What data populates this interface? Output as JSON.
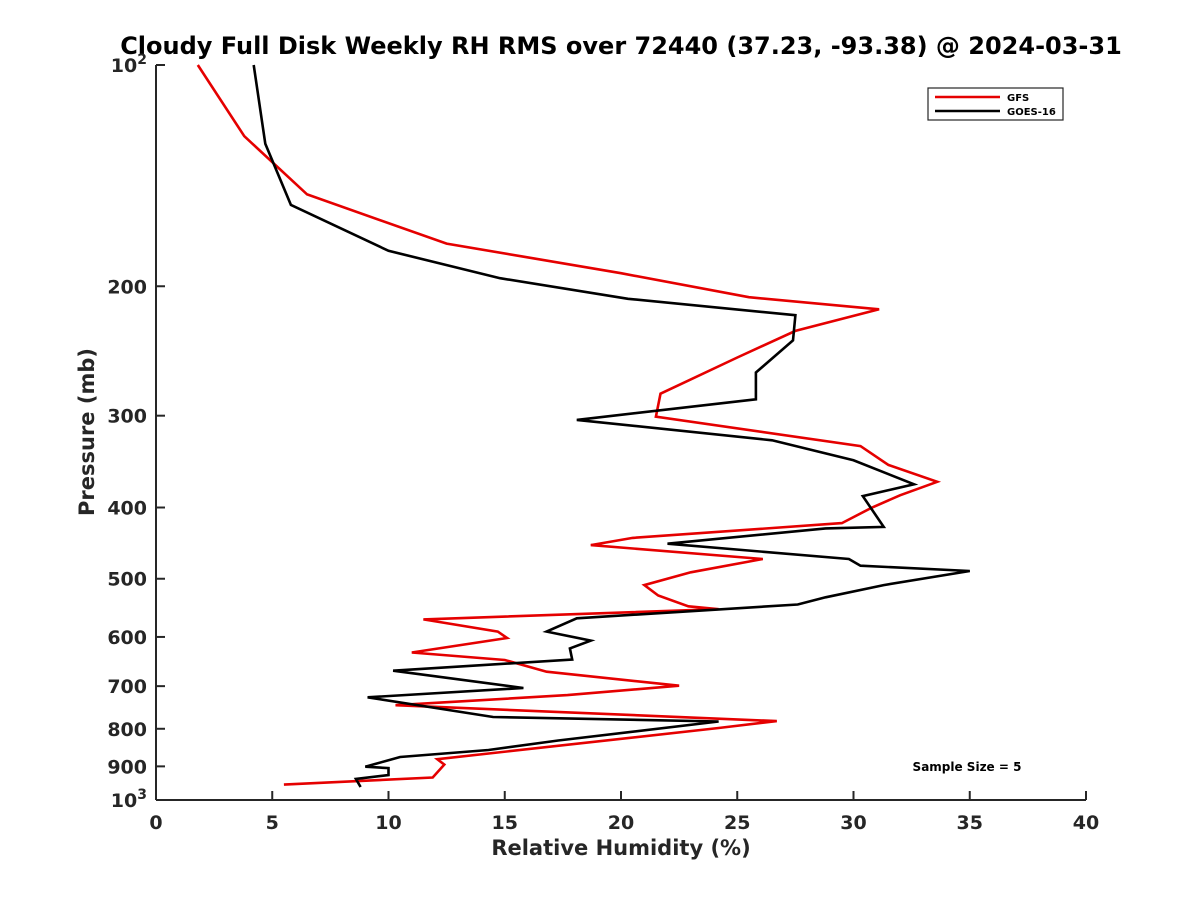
{
  "chart_data": {
    "type": "line",
    "title": "Cloudy Full Disk Weekly RH RMS over 72440 (37.23, -93.38) @ 2024-03-31",
    "xlabel": "Relative Humidity (%)",
    "ylabel": "Pressure (mb)",
    "xlim": [
      0,
      40
    ],
    "ylim": [
      100,
      1000
    ],
    "y_scale": "log",
    "y_reversed": true,
    "grid": false,
    "legend_position": "top-right",
    "annotation": "Sample Size = 5",
    "x_ticks": [
      "0",
      "5",
      "10",
      "15",
      "20",
      "25",
      "30",
      "35",
      "40"
    ],
    "y_ticks": [
      {
        "value": 100,
        "base": "10",
        "exp": "2"
      },
      {
        "value": 200,
        "label": "200"
      },
      {
        "value": 300,
        "label": "300"
      },
      {
        "value": 400,
        "label": "400"
      },
      {
        "value": 500,
        "label": "500"
      },
      {
        "value": 600,
        "label": "600"
      },
      {
        "value": 700,
        "label": "700"
      },
      {
        "value": 800,
        "label": "800"
      },
      {
        "value": 900,
        "label": "900"
      },
      {
        "value": 1000,
        "base": "10",
        "exp": "3"
      }
    ],
    "series": [
      {
        "name": "GFS",
        "color": "#e50000",
        "points": [
          [
            1.8,
            100
          ],
          [
            3.8,
            125
          ],
          [
            6.5,
            150
          ],
          [
            12.5,
            175
          ],
          [
            20.0,
            192
          ],
          [
            25.5,
            207
          ],
          [
            31.1,
            215
          ],
          [
            27.5,
            230
          ],
          [
            25.0,
            250
          ],
          [
            21.7,
            280
          ],
          [
            21.5,
            301
          ],
          [
            30.3,
            330
          ],
          [
            31.5,
            350
          ],
          [
            33.6,
            369
          ],
          [
            32.0,
            385
          ],
          [
            30.8,
            400
          ],
          [
            29.5,
            420
          ],
          [
            20.5,
            440
          ],
          [
            18.7,
            450
          ],
          [
            26.1,
            470
          ],
          [
            23.0,
            490
          ],
          [
            21.0,
            510
          ],
          [
            21.6,
            527
          ],
          [
            22.9,
            545
          ],
          [
            24.2,
            550
          ],
          [
            11.5,
            568
          ],
          [
            14.7,
            590
          ],
          [
            15.1,
            602
          ],
          [
            11.0,
            630
          ],
          [
            15.0,
            645
          ],
          [
            16.8,
            669
          ],
          [
            22.5,
            699
          ],
          [
            17.7,
            720
          ],
          [
            10.3,
            743
          ],
          [
            26.7,
            781
          ],
          [
            24.2,
            798
          ],
          [
            12.1,
            880
          ],
          [
            12.4,
            895
          ],
          [
            11.9,
            932
          ],
          [
            5.5,
            953
          ]
        ]
      },
      {
        "name": "GOES-16",
        "color": "#000000",
        "points": [
          [
            4.2,
            100
          ],
          [
            4.7,
            128
          ],
          [
            5.8,
            155
          ],
          [
            10.0,
            179
          ],
          [
            14.8,
            195
          ],
          [
            20.3,
            208
          ],
          [
            27.5,
            219
          ],
          [
            27.4,
            237
          ],
          [
            25.8,
            262
          ],
          [
            25.8,
            285
          ],
          [
            18.1,
            304
          ],
          [
            26.5,
            324
          ],
          [
            30.0,
            345
          ],
          [
            32.6,
            372
          ],
          [
            30.4,
            386
          ],
          [
            31.3,
            425
          ],
          [
            28.8,
            427
          ],
          [
            22.0,
            448
          ],
          [
            29.8,
            470
          ],
          [
            30.3,
            480
          ],
          [
            35.0,
            488
          ],
          [
            31.3,
            510
          ],
          [
            28.8,
            530
          ],
          [
            27.6,
            542
          ],
          [
            18.1,
            566
          ],
          [
            16.8,
            590
          ],
          [
            18.7,
            607
          ],
          [
            17.8,
            622
          ],
          [
            17.9,
            644
          ],
          [
            10.2,
            667
          ],
          [
            15.8,
            704
          ],
          [
            9.1,
            725
          ],
          [
            14.5,
            771
          ],
          [
            24.2,
            782
          ],
          [
            17.3,
            830
          ],
          [
            14.3,
            855
          ],
          [
            10.5,
            874
          ],
          [
            9.0,
            901
          ],
          [
            10.0,
            905
          ],
          [
            10.0,
            925
          ],
          [
            8.6,
            936
          ],
          [
            8.8,
            960
          ]
        ]
      }
    ]
  }
}
